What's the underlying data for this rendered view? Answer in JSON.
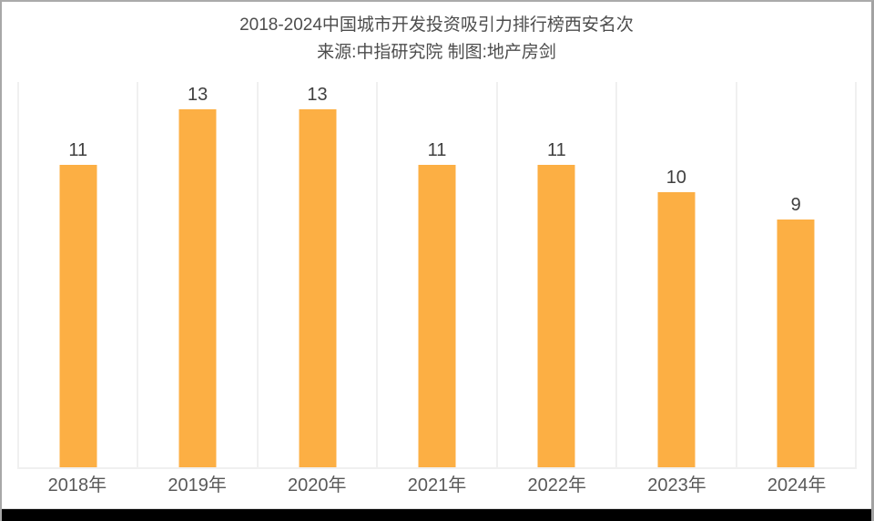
{
  "header": {
    "title": "2018-2024中国城市开发投资吸引力排行榜西安名次",
    "subtitle": "来源:中指研究院 制图:地产房剑"
  },
  "chart_data": {
    "type": "bar",
    "title": "2018-2024中国城市开发投资吸引力排行榜西安名次",
    "subtitle": "来源:中指研究院 制图:地产房剑",
    "categories": [
      "2018年",
      "2019年",
      "2020年",
      "2021年",
      "2022年",
      "2023年",
      "2024年"
    ],
    "values": [
      11,
      13,
      13,
      11,
      11,
      10,
      9
    ],
    "xlabel": "",
    "ylabel": "",
    "ylim": [
      0,
      14
    ],
    "grid": "vertical-column-separators",
    "legend": "none",
    "bar_color": "#FCAF44",
    "gridline_color": "#F0F0F0",
    "value_label_color": "#3F3F3F",
    "axis_label_color": "#595959",
    "title_color": "#4D4D4D",
    "background_color": "#FFFFFF"
  }
}
